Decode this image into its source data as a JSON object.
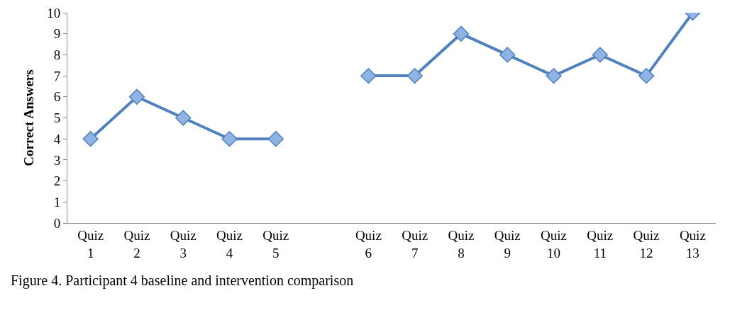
{
  "chart_data": {
    "type": "line",
    "ylabel": "Correct Answers",
    "categories": [
      "Quiz 1",
      "Quiz 2",
      "Quiz 3",
      "Quiz 4",
      "Quiz 5",
      null,
      "Quiz 6",
      "Quiz 7",
      "Quiz 8",
      "Quiz 9",
      "Quiz 10",
      "Quiz 11",
      "Quiz 12",
      "Quiz 13"
    ],
    "series": [
      {
        "color": "#4f81bd",
        "values": [
          4,
          6,
          5,
          4,
          4,
          null,
          7,
          7,
          9,
          8,
          7,
          8,
          7,
          10
        ]
      }
    ],
    "ylim": [
      0,
      10
    ],
    "yticks": [
      0,
      1,
      2,
      3,
      4,
      5,
      6,
      7,
      8,
      9,
      10
    ],
    "grid": false,
    "marker": "diamond",
    "line_style": "solid",
    "annotations": [
      "Figure 4. Participant 4 baseline and intervention comparison"
    ]
  }
}
